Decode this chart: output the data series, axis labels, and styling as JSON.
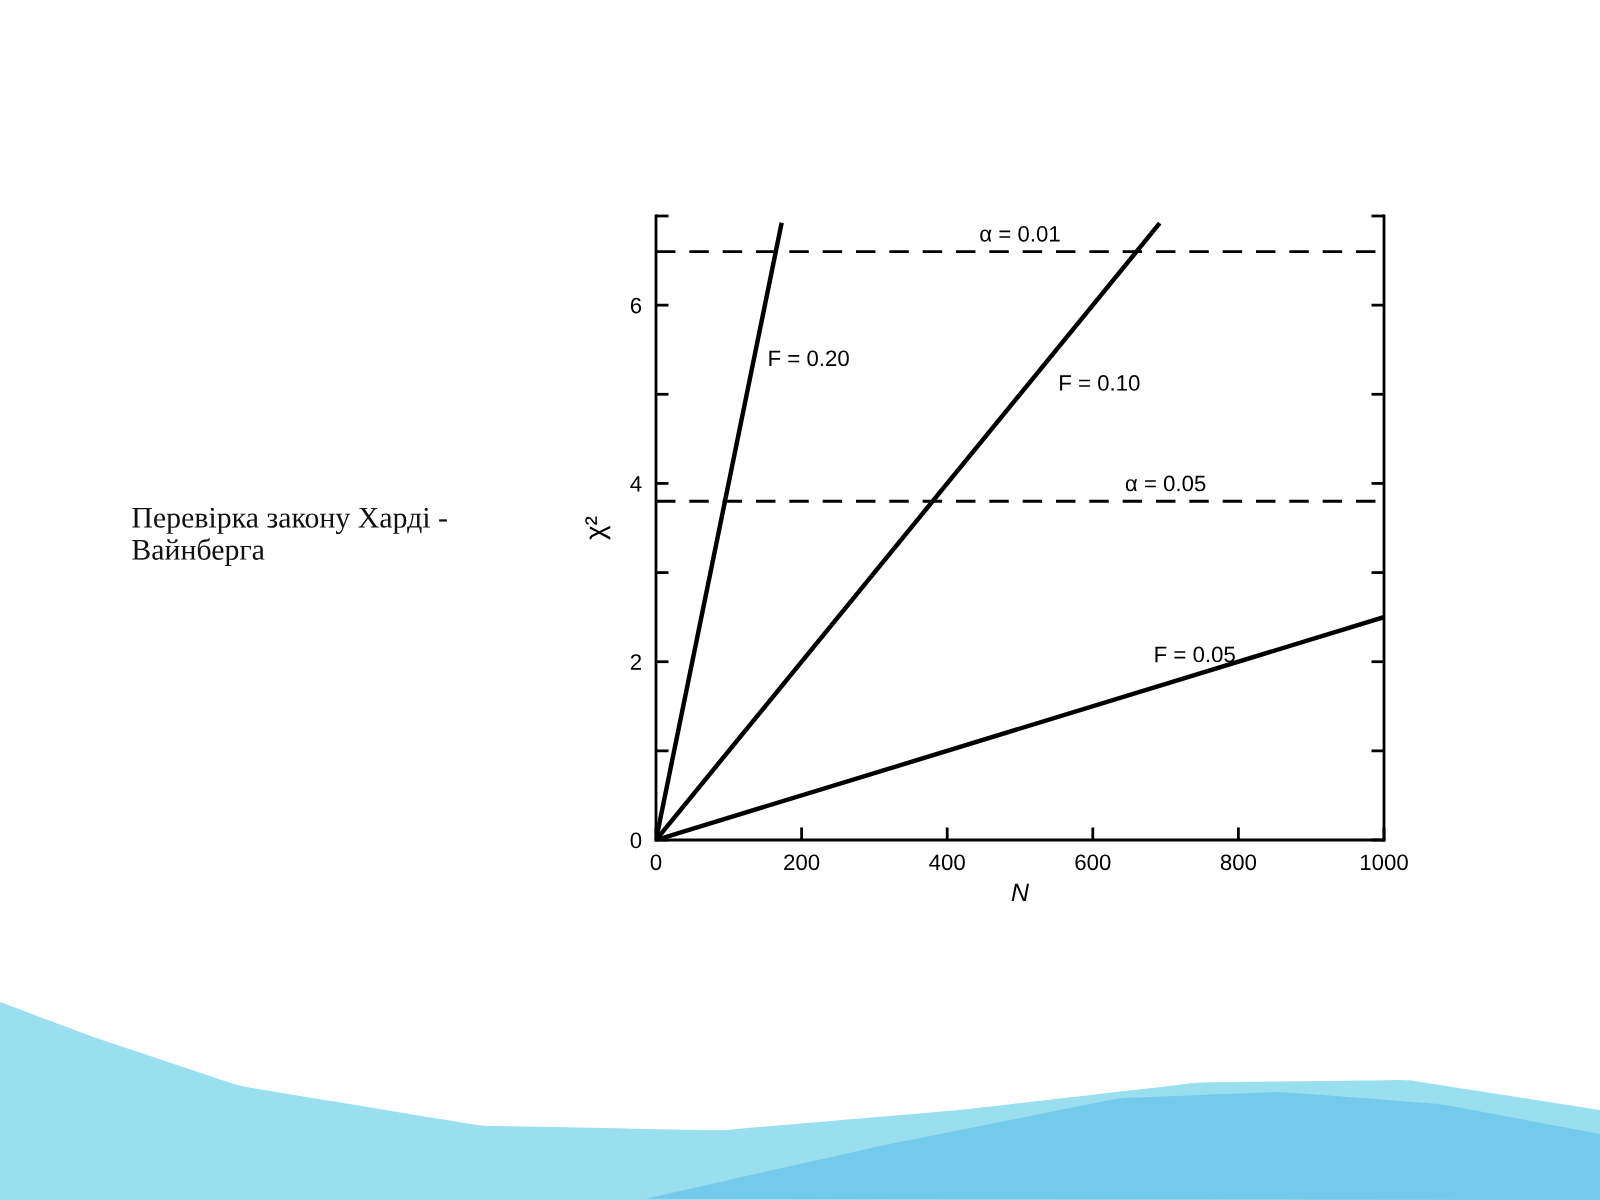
{
  "chart_data": {
    "type": "line",
    "title": "Перевірка закону Харді - Вайнберга",
    "xlabel": "N",
    "ylabel": "χ²",
    "series": [
      {
        "name": "F = 0.20",
        "color": "#000000",
        "x": [
          0,
          172
        ],
        "values": [
          0,
          6.9
        ]
      },
      {
        "name": "F = 0.10",
        "color": "#000000",
        "x": [
          0,
          690
        ],
        "values": [
          0,
          6.9
        ]
      },
      {
        "name": "F = 0.05",
        "color": "#000000",
        "x": [
          0,
          1000
        ],
        "values": [
          0,
          2.5
        ]
      }
    ],
    "xlim": [
      0,
      1000
    ],
    "ylim": [
      0,
      7
    ],
    "xticks": [
      0,
      200,
      400,
      600,
      800,
      1000
    ],
    "yticks": [
      0,
      {
        "value": 1,
        "label": null
      },
      2,
      {
        "value": 3,
        "label": null
      },
      4,
      {
        "value": 5,
        "label": null
      },
      6,
      {
        "value": 7,
        "label": null
      }
    ],
    "ref_lines": [
      {
        "axis": "y",
        "value": 6.6,
        "color": "#000000",
        "line_style": "dashed"
      },
      {
        "axis": "y",
        "value": 3.8,
        "color": "#000000",
        "line_style": "dashed"
      }
    ],
    "annotations": [
      {
        "text": "α = 0.01",
        "x": 500,
        "y": 6.6
      },
      {
        "text": "α = 0.05",
        "x": 700,
        "y": 3.8
      }
    ],
    "line_style": "solid",
    "marker": "none",
    "legend": false,
    "grid": false
  }
}
